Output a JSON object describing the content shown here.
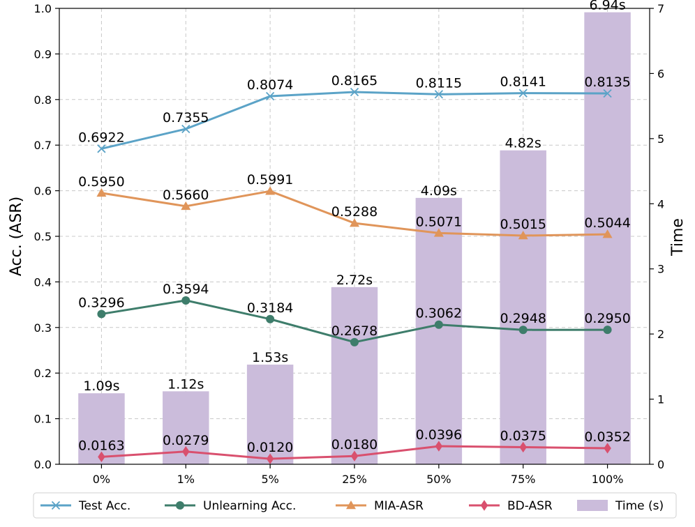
{
  "chart_data": {
    "type": "bar+line",
    "categories": [
      "0%",
      "1%",
      "5%",
      "25%",
      "50%",
      "75%",
      "100%"
    ],
    "ylabel_left": "Acc. (ASR)",
    "ylabel_right": "Time",
    "ylim_left": [
      0,
      1.0
    ],
    "ylim_right": [
      0,
      7.0
    ],
    "yticks_left": [
      "0.0",
      "0.1",
      "0.2",
      "0.3",
      "0.4",
      "0.5",
      "0.6",
      "0.7",
      "0.8",
      "0.9",
      "1.0"
    ],
    "yticks_right": [
      "0",
      "1",
      "2",
      "3",
      "4",
      "5",
      "6",
      "7"
    ],
    "grid": true,
    "legend_position": "bottom",
    "bars": {
      "name": "Time (s)",
      "color": "#cbbcdb",
      "values": [
        1.09,
        1.12,
        1.53,
        2.72,
        4.09,
        4.82,
        6.94
      ],
      "labels": [
        "1.09s",
        "1.12s",
        "1.53s",
        "2.72s",
        "4.09s",
        "4.82s",
        "6.94s"
      ]
    },
    "series": [
      {
        "name": "Test Acc.",
        "color": "#5ba3c7",
        "marker": "x",
        "values": [
          0.6922,
          0.7355,
          0.8074,
          0.8165,
          0.8115,
          0.8141,
          0.8135
        ],
        "labels": [
          "0.6922",
          "0.7355",
          "0.8074",
          "0.8165",
          "0.8115",
          "0.8141",
          "0.8135"
        ]
      },
      {
        "name": "Unlearning Acc.",
        "color": "#3e7d6b",
        "marker": "circle",
        "values": [
          0.3296,
          0.3594,
          0.3184,
          0.2678,
          0.3062,
          0.2948,
          0.295
        ],
        "labels": [
          "0.3296",
          "0.3594",
          "0.3184",
          "0.2678",
          "0.3062",
          "0.2948",
          "0.2950"
        ]
      },
      {
        "name": "MIA-ASR",
        "color": "#e0955a",
        "marker": "triangle",
        "values": [
          0.595,
          0.566,
          0.5991,
          0.5288,
          0.5071,
          0.5015,
          0.5044
        ],
        "labels": [
          "0.5950",
          "0.5660",
          "0.5991",
          "0.5288",
          "0.5071",
          "0.5015",
          "0.5044"
        ]
      },
      {
        "name": "BD-ASR",
        "color": "#d9506e",
        "marker": "diamond",
        "values": [
          0.0163,
          0.0279,
          0.012,
          0.018,
          0.0396,
          0.0375,
          0.0352
        ],
        "labels": [
          "0.0163",
          "0.0279",
          "0.0120",
          "0.0180",
          "0.0396",
          "0.0375",
          "0.0352"
        ]
      }
    ],
    "legend": [
      "Test Acc.",
      "Unlearning Acc.",
      "MIA-ASR",
      "BD-ASR",
      "Time (s)"
    ]
  }
}
